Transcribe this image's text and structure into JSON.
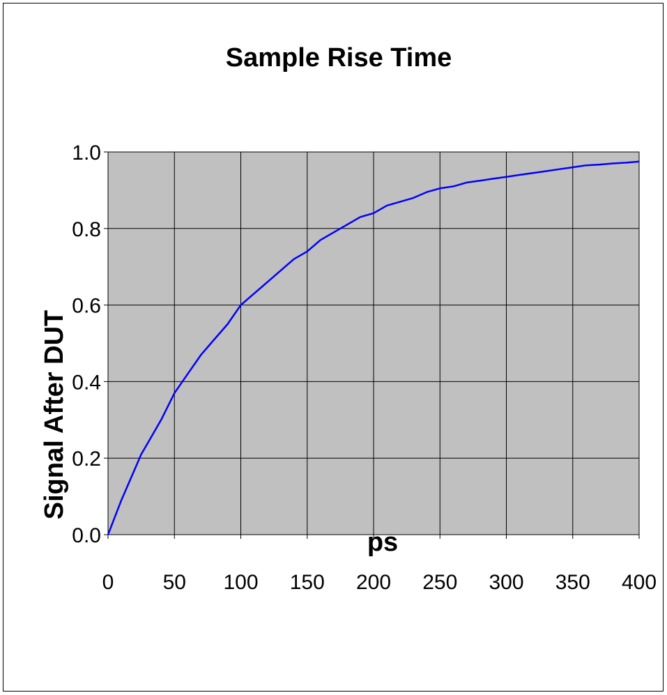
{
  "chart_data": {
    "type": "line",
    "title": "Sample Rise Time",
    "xlabel": "ps",
    "ylabel": "Signal After DUT",
    "xlim": [
      0,
      400
    ],
    "ylim": [
      0,
      1.0
    ],
    "x_ticks": [
      "0",
      "50",
      "100",
      "150",
      "200",
      "250",
      "300",
      "350",
      "400"
    ],
    "y_ticks": [
      "0.0",
      "0.2",
      "0.4",
      "0.6",
      "0.8",
      "1.0"
    ],
    "grid": true,
    "legend": "none",
    "plot_background": "#c0c0c0",
    "series": [
      {
        "color": "#0000ff",
        "x": [
          0,
          10,
          20,
          25,
          30,
          40,
          50,
          60,
          70,
          80,
          90,
          100,
          110,
          120,
          130,
          140,
          150,
          160,
          170,
          180,
          190,
          200,
          210,
          220,
          230,
          240,
          250,
          260,
          270,
          280,
          290,
          300,
          310,
          320,
          330,
          340,
          350,
          360,
          370,
          380,
          390,
          400
        ],
        "y": [
          0.0,
          0.09,
          0.17,
          0.21,
          0.24,
          0.3,
          0.37,
          0.42,
          0.47,
          0.51,
          0.55,
          0.6,
          0.63,
          0.66,
          0.69,
          0.72,
          0.74,
          0.77,
          0.79,
          0.81,
          0.83,
          0.84,
          0.86,
          0.87,
          0.88,
          0.895,
          0.905,
          0.91,
          0.92,
          0.925,
          0.93,
          0.935,
          0.94,
          0.945,
          0.95,
          0.955,
          0.96,
          0.965,
          0.967,
          0.97,
          0.972,
          0.975
        ]
      }
    ]
  }
}
